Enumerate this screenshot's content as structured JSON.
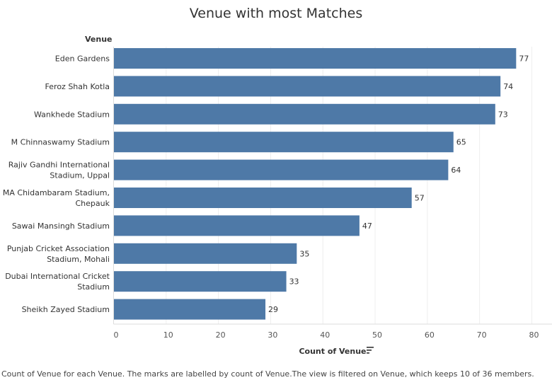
{
  "chart_data": {
    "type": "bar",
    "orientation": "horizontal",
    "title": "Venue with most Matches",
    "ylabel": "Venue",
    "xlabel": "Count of Venue",
    "xlim": [
      0,
      84
    ],
    "x_ticks": [
      0,
      10,
      20,
      30,
      40,
      50,
      60,
      70,
      80
    ],
    "grid": true,
    "bar_color": "#4e79a7",
    "categories": [
      [
        "Eden Gardens"
      ],
      [
        "Feroz Shah Kotla"
      ],
      [
        "Wankhede Stadium"
      ],
      [
        "M Chinnaswamy Stadium"
      ],
      [
        "Rajiv Gandhi International",
        "Stadium, Uppal"
      ],
      [
        "MA Chidambaram Stadium,",
        "Chepauk"
      ],
      [
        "Sawai Mansingh Stadium"
      ],
      [
        "Punjab Cricket Association",
        "Stadium, Mohali"
      ],
      [
        "Dubai International Cricket",
        "Stadium"
      ],
      [
        "Sheikh Zayed Stadium"
      ]
    ],
    "values": [
      77,
      74,
      73,
      65,
      64,
      57,
      47,
      35,
      33,
      29
    ]
  },
  "caption": "Count of Venue for each Venue. The marks are labelled by count of Venue.The view is filtered on Venue, which keeps 10 of 36 members.",
  "sort_icon": "sort-descending-icon"
}
